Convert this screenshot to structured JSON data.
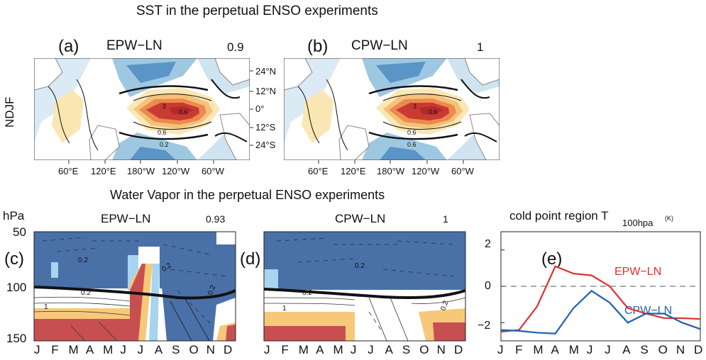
{
  "top": {
    "title": "SST in the perpetual ENSO experiments",
    "row_label": "NDJF",
    "panel_a": {
      "letter": "(a)",
      "name": "EPW−LN",
      "corr": "0.9"
    },
    "panel_b": {
      "letter": "(b)",
      "name": "CPW−LN",
      "corr": "1"
    },
    "lat_ticks": [
      "24°N",
      "12°N",
      "0°",
      "12°S",
      "24°S"
    ],
    "lon_ticks": [
      "60°E",
      "120°E",
      "180°W",
      "120°W",
      "60°W"
    ],
    "contour_labels": [
      "3",
      "0.6",
      "0.6",
      "0.2",
      "3",
      "0.6",
      "0.6",
      "0.6"
    ]
  },
  "bottom": {
    "title": "Water Vapor in the perpetual ENSO experiments",
    "y_unit": "hPa",
    "y_ticks": [
      "50",
      "100",
      "150"
    ],
    "months": [
      "J",
      "F",
      "M",
      "A",
      "M",
      "J",
      "J",
      "A",
      "S",
      "O",
      "N",
      "D"
    ],
    "panel_c": {
      "letter": "(c)",
      "name": "EPW−LN",
      "corr": "0.93",
      "contour_labels": [
        "0.2",
        "0.2",
        "0.2",
        "1",
        "0.2"
      ]
    },
    "panel_d": {
      "letter": "(d)",
      "name": "CPW−LN",
      "corr": "1",
      "contour_labels": [
        "0.2",
        "0.2",
        "1",
        "0.2"
      ]
    },
    "panel_e": {
      "letter": "(e)",
      "title_main": "cold point region T",
      "title_sub": "100hpa",
      "title_unit": "(K)",
      "y_ticks": [
        "2",
        "0",
        "−2"
      ]
    }
  },
  "chart_data": {
    "type": "line",
    "x": [
      "J",
      "F",
      "M",
      "A",
      "M",
      "J",
      "J",
      "A",
      "S",
      "O",
      "N",
      "D"
    ],
    "ylim": [
      -3,
      3
    ],
    "zero_line": "dashed",
    "series": [
      {
        "name": "EPW−LN",
        "color": "#e03030",
        "values": [
          -2.5,
          -2.4,
          -1.1,
          1.1,
          0.7,
          0.6,
          0.0,
          -1.2,
          -1.5,
          -1.75,
          -1.75,
          -1.8
        ]
      },
      {
        "name": "CPW−LN",
        "color": "#1f5fb0",
        "values": [
          -2.4,
          -2.45,
          -2.55,
          -2.6,
          -1.2,
          -0.25,
          -0.9,
          -2.0,
          -1.5,
          -1.5,
          -2.0,
          -2.35
        ]
      }
    ]
  }
}
